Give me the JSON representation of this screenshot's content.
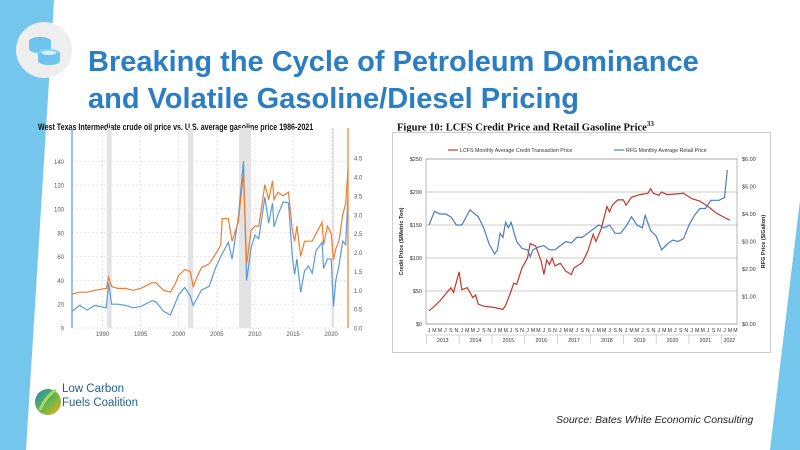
{
  "slide": {
    "title_line1": "Breaking the Cycle of Petroleum Dominance",
    "title_line2": "and Volatile Gasoline/Diesel Pricing",
    "icon": "coins-icon",
    "logo_line1": "Low Carbon",
    "logo_line2": "Fuels Coalition",
    "source": "Source: Bates White Economic Consulting",
    "accent_color": "#2b7ec1",
    "band_color": "#74c6ec"
  },
  "chart_data": [
    {
      "type": "line",
      "title": "West Texas Intermediate crude oil price vs. U.S. average gasoline price 1986-2021",
      "xlim": [
        1986,
        2022.2
      ],
      "x_ticks": [
        "1990",
        "1995",
        "2000",
        "2005",
        "2010",
        "2015",
        "2020"
      ],
      "y_left_ticks": [
        "0",
        "20",
        "40",
        "60",
        "80",
        "100",
        "120",
        "140"
      ],
      "y_left_lim": [
        0,
        168
      ],
      "y_right_ticks": [
        "0.0",
        "0.5",
        "1.0",
        "1.5",
        "2.0",
        "2.5",
        "3.0",
        "3.5",
        "4.0",
        "4.5"
      ],
      "y_right_lim": [
        0,
        5.3
      ],
      "grid": true,
      "recessions": [
        [
          1990.6,
          1991.2
        ],
        [
          2001.2,
          2001.9
        ],
        [
          2007.9,
          2009.5
        ],
        [
          2020.1,
          2020.4
        ]
      ],
      "series": [
        {
          "name": "WTI crude oil price",
          "axis": "left",
          "color": "#5b9bd5",
          "points": [
            [
              1986,
              14
            ],
            [
              1987,
              19
            ],
            [
              1988,
              15
            ],
            [
              1989,
              19
            ],
            [
              1990.5,
              17
            ],
            [
              1990.8,
              38
            ],
            [
              1991.2,
              20
            ],
            [
              1992,
              20
            ],
            [
              1993,
              19
            ],
            [
              1994,
              17
            ],
            [
              1995,
              18
            ],
            [
              1996.5,
              23
            ],
            [
              1997,
              22
            ],
            [
              1998,
              14
            ],
            [
              1998.9,
              11
            ],
            [
              1999.5,
              20
            ],
            [
              2000,
              28
            ],
            [
              2000.8,
              34
            ],
            [
              2001.5,
              27
            ],
            [
              2001.9,
              19
            ],
            [
              2002.5,
              26
            ],
            [
              2003,
              32
            ],
            [
              2004,
              35
            ],
            [
              2004.8,
              50
            ],
            [
              2005.5,
              60
            ],
            [
              2006.5,
              72
            ],
            [
              2007,
              58
            ],
            [
              2007.8,
              92
            ],
            [
              2008.5,
              140
            ],
            [
              2008.9,
              40
            ],
            [
              2009.5,
              68
            ],
            [
              2010,
              78
            ],
            [
              2010.5,
              75
            ],
            [
              2011.3,
              110
            ],
            [
              2011.8,
              88
            ],
            [
              2012.3,
              105
            ],
            [
              2012.5,
              85
            ],
            [
              2013,
              95
            ],
            [
              2013.7,
              106
            ],
            [
              2014.4,
              105
            ],
            [
              2014.9,
              60
            ],
            [
              2015.2,
              45
            ],
            [
              2015.5,
              58
            ],
            [
              2016,
              30
            ],
            [
              2016.5,
              48
            ],
            [
              2017,
              52
            ],
            [
              2017.5,
              46
            ],
            [
              2018,
              65
            ],
            [
              2018.8,
              72
            ],
            [
              2019,
              50
            ],
            [
              2019.5,
              58
            ],
            [
              2020,
              58
            ],
            [
              2020.3,
              18
            ],
            [
              2020.6,
              40
            ],
            [
              2021,
              52
            ],
            [
              2021.5,
              73
            ],
            [
              2021.9,
              70
            ],
            [
              2022.2,
              112
            ]
          ]
        },
        {
          "name": "U.S. average gasoline price",
          "axis": "right",
          "color": "#ed7d31",
          "points": [
            [
              1986,
              0.9
            ],
            [
              1987,
              0.95
            ],
            [
              1988,
              0.95
            ],
            [
              1989,
              1.0
            ],
            [
              1990.5,
              1.05
            ],
            [
              1990.8,
              1.35
            ],
            [
              1991.2,
              1.1
            ],
            [
              1992,
              1.05
            ],
            [
              1993,
              1.05
            ],
            [
              1994,
              1.0
            ],
            [
              1995,
              1.05
            ],
            [
              1996.5,
              1.2
            ],
            [
              1997,
              1.2
            ],
            [
              1998,
              1.0
            ],
            [
              1998.9,
              0.95
            ],
            [
              1999.5,
              1.15
            ],
            [
              2000,
              1.4
            ],
            [
              2000.8,
              1.55
            ],
            [
              2001.5,
              1.5
            ],
            [
              2001.9,
              1.1
            ],
            [
              2002.5,
              1.4
            ],
            [
              2003,
              1.6
            ],
            [
              2004,
              1.7
            ],
            [
              2004.8,
              1.95
            ],
            [
              2005.5,
              2.2
            ],
            [
              2005.7,
              2.9
            ],
            [
              2006.5,
              2.9
            ],
            [
              2007,
              2.3
            ],
            [
              2007.8,
              2.8
            ],
            [
              2008.5,
              4.1
            ],
            [
              2008.9,
              1.7
            ],
            [
              2009.5,
              2.6
            ],
            [
              2010,
              2.7
            ],
            [
              2010.5,
              2.7
            ],
            [
              2011.3,
              3.8
            ],
            [
              2011.8,
              3.4
            ],
            [
              2012.3,
              3.9
            ],
            [
              2012.5,
              3.4
            ],
            [
              2013,
              3.6
            ],
            [
              2013.7,
              3.5
            ],
            [
              2014.4,
              3.6
            ],
            [
              2014.9,
              2.6
            ],
            [
              2015.2,
              2.3
            ],
            [
              2015.5,
              2.7
            ],
            [
              2016,
              1.9
            ],
            [
              2016.5,
              2.3
            ],
            [
              2017,
              2.3
            ],
            [
              2017.5,
              2.3
            ],
            [
              2018,
              2.5
            ],
            [
              2018.8,
              2.8
            ],
            [
              2019,
              2.2
            ],
            [
              2019.5,
              2.7
            ],
            [
              2020,
              2.5
            ],
            [
              2020.3,
              1.8
            ],
            [
              2020.6,
              2.1
            ],
            [
              2021,
              2.3
            ],
            [
              2021.5,
              3.0
            ],
            [
              2021.9,
              3.3
            ],
            [
              2022.2,
              4.2
            ]
          ]
        }
      ]
    },
    {
      "type": "line",
      "title": "Figure 10:  LCFS Credit Price and Retail Gasoline Price",
      "title_sup": "33",
      "ylabel_left": "Credit Price ($/Metric Ton)",
      "ylabel_right": "RFG Price ($/Gallon)",
      "y_left_ticks": [
        "$0",
        "$50",
        "$100",
        "$150",
        "$200",
        "$250"
      ],
      "y_left_lim": [
        0,
        250
      ],
      "y_right_ticks": [
        "$0.00",
        "$1.00",
        "$2.00",
        "$3.00",
        "$4.00",
        "$5.00",
        "$6.00"
      ],
      "y_right_lim": [
        0,
        6
      ],
      "x_unit": "months since Jan 2013",
      "xlim": [
        0,
        110
      ],
      "month_labels": [
        "J",
        "M",
        "M",
        "J",
        "S",
        "N"
      ],
      "month_labels_2022": [
        "J",
        "M",
        "M"
      ],
      "years": [
        "2013",
        "2014",
        "2015",
        "2016",
        "2017",
        "2018",
        "2019",
        "2020",
        "2021",
        "2022"
      ],
      "grid": true,
      "legend": "top",
      "series": [
        {
          "name": "LCFS Monthly Average Credit Transaction Price",
          "axis": "left",
          "color": "#c0392b",
          "points": [
            [
              0,
              20
            ],
            [
              2,
              27
            ],
            [
              4,
              35
            ],
            [
              6,
              45
            ],
            [
              8,
              55
            ],
            [
              9,
              48
            ],
            [
              11,
              79
            ],
            [
              12,
              52
            ],
            [
              14,
              55
            ],
            [
              16,
              40
            ],
            [
              17,
              44
            ],
            [
              18,
              30
            ],
            [
              20,
              27
            ],
            [
              24,
              25
            ],
            [
              27,
              22
            ],
            [
              28,
              28
            ],
            [
              30,
              50
            ],
            [
              31,
              62
            ],
            [
              32,
              60
            ],
            [
              34,
              85
            ],
            [
              36,
              100
            ],
            [
              37,
              122
            ],
            [
              39,
              118
            ],
            [
              41,
              95
            ],
            [
              42,
              75
            ],
            [
              43,
              97
            ],
            [
              44,
              90
            ],
            [
              45,
              100
            ],
            [
              46,
              88
            ],
            [
              48,
              92
            ],
            [
              50,
              80
            ],
            [
              52,
              75
            ],
            [
              53,
              85
            ],
            [
              56,
              93
            ],
            [
              58,
              110
            ],
            [
              60,
              136
            ],
            [
              61,
              125
            ],
            [
              63,
              145
            ],
            [
              65,
              178
            ],
            [
              66,
              170
            ],
            [
              67,
              180
            ],
            [
              69,
              188
            ],
            [
              71,
              188
            ],
            [
              72,
              180
            ],
            [
              74,
              192
            ],
            [
              77,
              196
            ],
            [
              80,
              198
            ],
            [
              81,
              205
            ],
            [
              82,
              198
            ],
            [
              84,
              195
            ],
            [
              85,
              200
            ],
            [
              87,
              196
            ],
            [
              90,
              197
            ],
            [
              93,
              198
            ],
            [
              96,
              190
            ],
            [
              99,
              186
            ],
            [
              102,
              178
            ],
            [
              105,
              168
            ],
            [
              110,
              157
            ]
          ]
        },
        {
          "name": "RFG Monthly Average Retail Price",
          "axis": "right",
          "color": "#4a7ebb",
          "points": [
            [
              0,
              3.6
            ],
            [
              2,
              4.1
            ],
            [
              4,
              4.0
            ],
            [
              6,
              4.0
            ],
            [
              8,
              3.9
            ],
            [
              10,
              3.6
            ],
            [
              12,
              3.6
            ],
            [
              15,
              4.15
            ],
            [
              18,
              3.9
            ],
            [
              20,
              3.5
            ],
            [
              22,
              2.9
            ],
            [
              24,
              2.55
            ],
            [
              25,
              2.7
            ],
            [
              26,
              3.3
            ],
            [
              27,
              3.15
            ],
            [
              28,
              3.7
            ],
            [
              29,
              3.5
            ],
            [
              30,
              3.7
            ],
            [
              32,
              3.0
            ],
            [
              34,
              2.75
            ],
            [
              36,
              2.7
            ],
            [
              37,
              2.45
            ],
            [
              38,
              2.7
            ],
            [
              40,
              2.8
            ],
            [
              42,
              2.85
            ],
            [
              44,
              2.7
            ],
            [
              46,
              2.7
            ],
            [
              48,
              2.85
            ],
            [
              50,
              3.0
            ],
            [
              52,
              2.95
            ],
            [
              54,
              3.15
            ],
            [
              56,
              3.15
            ],
            [
              58,
              3.3
            ],
            [
              60,
              3.45
            ],
            [
              62,
              3.6
            ],
            [
              64,
              3.5
            ],
            [
              66,
              3.6
            ],
            [
              68,
              3.3
            ],
            [
              70,
              3.3
            ],
            [
              72,
              3.55
            ],
            [
              74,
              3.9
            ],
            [
              76,
              3.6
            ],
            [
              78,
              3.5
            ],
            [
              79,
              3.95
            ],
            [
              81,
              3.4
            ],
            [
              83,
              3.2
            ],
            [
              85,
              2.7
            ],
            [
              87,
              2.9
            ],
            [
              89,
              3.05
            ],
            [
              91,
              3.0
            ],
            [
              93,
              3.1
            ],
            [
              95,
              3.6
            ],
            [
              97,
              3.95
            ],
            [
              99,
              4.2
            ],
            [
              101,
              4.2
            ],
            [
              103,
              4.5
            ],
            [
              106,
              4.5
            ],
            [
              108,
              4.6
            ],
            [
              109,
              5.6
            ]
          ]
        }
      ]
    }
  ]
}
